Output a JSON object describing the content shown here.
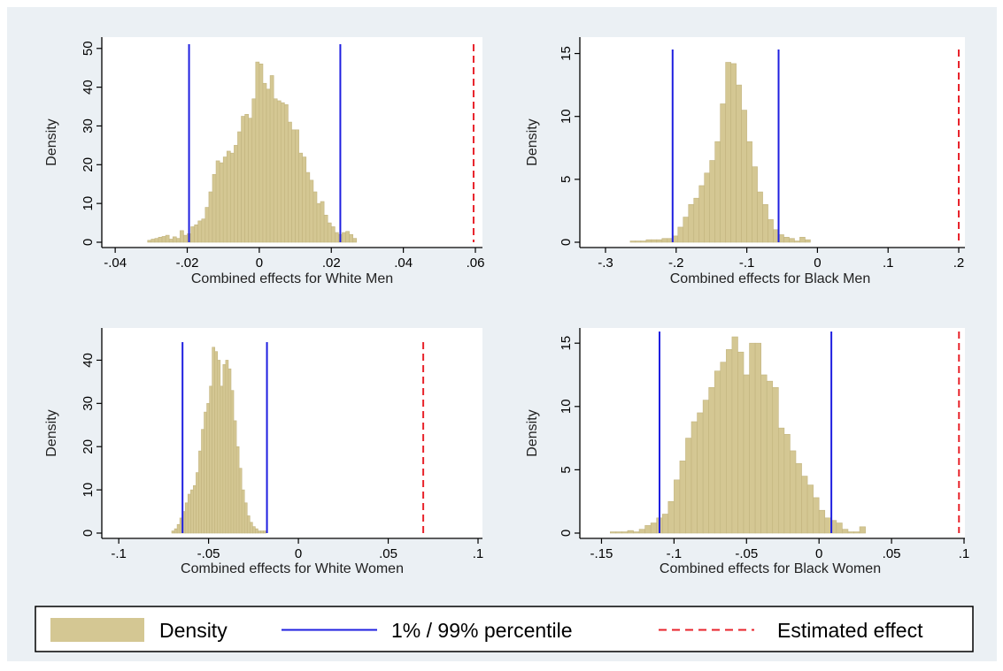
{
  "colors": {
    "background": "#ebf0f4",
    "plot": "#ffffff",
    "bar_fill": "#d4c793",
    "bar_edge": "#c2b47e",
    "percentile_line": "#1f1fe0",
    "estimate_line": "#e8232b"
  },
  "legend": {
    "density_label": "Density",
    "percentile_label": "1% / 99% percentile",
    "estimate_label": "Estimated effect"
  },
  "chart_data": [
    {
      "type": "bar",
      "id": "white-men",
      "xlabel": "Combined effects for White Men",
      "ylabel": "Density",
      "xlim": [
        -0.042,
        0.06
      ],
      "ylim": [
        0,
        52
      ],
      "xticks": [
        -0.04,
        -0.02,
        0,
        0.02,
        0.04,
        0.06
      ],
      "xtick_labels": [
        "-.04",
        "-.02",
        "0",
        ".02",
        ".04",
        ".06"
      ],
      "yticks": [
        0,
        10,
        20,
        30,
        40,
        50
      ],
      "bin_width": 0.001,
      "bins": [
        {
          "x": -0.031,
          "y": 0.5
        },
        {
          "x": -0.03,
          "y": 0.8
        },
        {
          "x": -0.029,
          "y": 1.0
        },
        {
          "x": -0.028,
          "y": 1.3
        },
        {
          "x": -0.027,
          "y": 1.5
        },
        {
          "x": -0.026,
          "y": 1.8
        },
        {
          "x": -0.025,
          "y": 0.8
        },
        {
          "x": -0.024,
          "y": 1.4
        },
        {
          "x": -0.023,
          "y": 1.0
        },
        {
          "x": -0.022,
          "y": 3.0
        },
        {
          "x": -0.021,
          "y": 1.8
        },
        {
          "x": -0.02,
          "y": 2.2
        },
        {
          "x": -0.019,
          "y": 4.0
        },
        {
          "x": -0.018,
          "y": 4.5
        },
        {
          "x": -0.017,
          "y": 5.5
        },
        {
          "x": -0.016,
          "y": 6.0
        },
        {
          "x": -0.015,
          "y": 9.0
        },
        {
          "x": -0.014,
          "y": 13.0
        },
        {
          "x": -0.013,
          "y": 17.5
        },
        {
          "x": -0.012,
          "y": 21.0
        },
        {
          "x": -0.011,
          "y": 20.5
        },
        {
          "x": -0.01,
          "y": 22.0
        },
        {
          "x": -0.009,
          "y": 23.5
        },
        {
          "x": -0.008,
          "y": 23.0
        },
        {
          "x": -0.007,
          "y": 25.0
        },
        {
          "x": -0.006,
          "y": 28.5
        },
        {
          "x": -0.005,
          "y": 32.5
        },
        {
          "x": -0.004,
          "y": 33.0
        },
        {
          "x": -0.003,
          "y": 32.0
        },
        {
          "x": -0.002,
          "y": 37.0
        },
        {
          "x": -0.001,
          "y": 46.5
        },
        {
          "x": 0.0,
          "y": 46.0
        },
        {
          "x": 0.001,
          "y": 41.0
        },
        {
          "x": 0.002,
          "y": 39.5
        },
        {
          "x": 0.003,
          "y": 43.0
        },
        {
          "x": 0.004,
          "y": 37.0
        },
        {
          "x": 0.005,
          "y": 36.5
        },
        {
          "x": 0.006,
          "y": 36.0
        },
        {
          "x": 0.007,
          "y": 35.5
        },
        {
          "x": 0.008,
          "y": 31.0
        },
        {
          "x": 0.009,
          "y": 29.0
        },
        {
          "x": 0.01,
          "y": 29.0
        },
        {
          "x": 0.011,
          "y": 23.0
        },
        {
          "x": 0.012,
          "y": 22.0
        },
        {
          "x": 0.013,
          "y": 18.0
        },
        {
          "x": 0.014,
          "y": 16.0
        },
        {
          "x": 0.015,
          "y": 13.0
        },
        {
          "x": 0.016,
          "y": 10.0
        },
        {
          "x": 0.017,
          "y": 10.5
        },
        {
          "x": 0.018,
          "y": 7.0
        },
        {
          "x": 0.019,
          "y": 5.0
        },
        {
          "x": 0.02,
          "y": 4.0
        },
        {
          "x": 0.021,
          "y": 2.5
        },
        {
          "x": 0.022,
          "y": 2.0
        },
        {
          "x": 0.023,
          "y": 2.5
        },
        {
          "x": 0.024,
          "y": 2.8
        },
        {
          "x": 0.025,
          "y": 2.0
        },
        {
          "x": 0.026,
          "y": 1.0
        }
      ],
      "percentile_lines": [
        -0.0195,
        0.0225
      ],
      "estimated_effect": 0.0595
    },
    {
      "type": "bar",
      "id": "black-men",
      "xlabel": "Combined effects for Black Men",
      "ylabel": "Density",
      "xlim": [
        -0.31,
        0.205
      ],
      "ylim": [
        0,
        15.6
      ],
      "xticks": [
        -0.3,
        -0.2,
        -0.1,
        0,
        0.1,
        0.2
      ],
      "xtick_labels": [
        "-.3",
        "-.2",
        "-.1",
        "0",
        ".1",
        ".2"
      ],
      "yticks": [
        0,
        5,
        10,
        15
      ],
      "bin_width": 0.0075,
      "bins": [
        {
          "x": -0.265,
          "y": 0.1
        },
        {
          "x": -0.2575,
          "y": 0.1
        },
        {
          "x": -0.25,
          "y": 0.1
        },
        {
          "x": -0.2425,
          "y": 0.2
        },
        {
          "x": -0.235,
          "y": 0.2
        },
        {
          "x": -0.2275,
          "y": 0.2
        },
        {
          "x": -0.22,
          "y": 0.3
        },
        {
          "x": -0.2125,
          "y": 0.3
        },
        {
          "x": -0.205,
          "y": 0.5
        },
        {
          "x": -0.1975,
          "y": 1.2
        },
        {
          "x": -0.19,
          "y": 2.0
        },
        {
          "x": -0.1825,
          "y": 3.0
        },
        {
          "x": -0.175,
          "y": 3.5
        },
        {
          "x": -0.1675,
          "y": 4.5
        },
        {
          "x": -0.16,
          "y": 5.5
        },
        {
          "x": -0.1525,
          "y": 6.5
        },
        {
          "x": -0.145,
          "y": 8.0
        },
        {
          "x": -0.1375,
          "y": 11.0
        },
        {
          "x": -0.13,
          "y": 14.3
        },
        {
          "x": -0.1225,
          "y": 14.2
        },
        {
          "x": -0.115,
          "y": 12.5
        },
        {
          "x": -0.1075,
          "y": 10.5
        },
        {
          "x": -0.1,
          "y": 8.0
        },
        {
          "x": -0.0925,
          "y": 6.0
        },
        {
          "x": -0.085,
          "y": 4.0
        },
        {
          "x": -0.0775,
          "y": 3.0
        },
        {
          "x": -0.07,
          "y": 1.8
        },
        {
          "x": -0.0625,
          "y": 1.0
        },
        {
          "x": -0.055,
          "y": 0.6
        },
        {
          "x": -0.0475,
          "y": 0.4
        },
        {
          "x": -0.04,
          "y": 0.3
        },
        {
          "x": -0.0325,
          "y": 0.1
        },
        {
          "x": -0.025,
          "y": 0.4
        },
        {
          "x": -0.0175,
          "y": 0.2
        }
      ],
      "percentile_lines": [
        -0.205,
        -0.055
      ],
      "estimated_effect": 0.2
    },
    {
      "type": "bar",
      "id": "white-women",
      "xlabel": "Combined effects for White Women",
      "ylabel": "Density",
      "xlim": [
        -0.105,
        0.1
      ],
      "ylim": [
        0,
        45
      ],
      "xticks": [
        -0.1,
        -0.05,
        0,
        0.05,
        0.1
      ],
      "xtick_labels": [
        "-.1",
        "-.05",
        "0",
        ".05",
        ".1"
      ],
      "yticks": [
        0,
        10,
        20,
        30,
        40
      ],
      "bin_width": 0.0015,
      "bins": [
        {
          "x": -0.0705,
          "y": 0.5
        },
        {
          "x": -0.069,
          "y": 1.0
        },
        {
          "x": -0.0675,
          "y": 2.0
        },
        {
          "x": -0.066,
          "y": 3.5
        },
        {
          "x": -0.0645,
          "y": 5.0
        },
        {
          "x": -0.063,
          "y": 7.0
        },
        {
          "x": -0.0615,
          "y": 9.0
        },
        {
          "x": -0.06,
          "y": 10.0
        },
        {
          "x": -0.0585,
          "y": 11.0
        },
        {
          "x": -0.057,
          "y": 14.0
        },
        {
          "x": -0.0555,
          "y": 19.0
        },
        {
          "x": -0.054,
          "y": 24.0
        },
        {
          "x": -0.0525,
          "y": 28.0
        },
        {
          "x": -0.051,
          "y": 30.0
        },
        {
          "x": -0.0495,
          "y": 34.0
        },
        {
          "x": -0.048,
          "y": 43.0
        },
        {
          "x": -0.0465,
          "y": 42.0
        },
        {
          "x": -0.045,
          "y": 40.0
        },
        {
          "x": -0.0435,
          "y": 34.0
        },
        {
          "x": -0.042,
          "y": 39.0
        },
        {
          "x": -0.0405,
          "y": 40.0
        },
        {
          "x": -0.039,
          "y": 38.0
        },
        {
          "x": -0.0375,
          "y": 33.0
        },
        {
          "x": -0.036,
          "y": 26.0
        },
        {
          "x": -0.0345,
          "y": 20.0
        },
        {
          "x": -0.033,
          "y": 15.0
        },
        {
          "x": -0.0315,
          "y": 10.0
        },
        {
          "x": -0.03,
          "y": 7.0
        },
        {
          "x": -0.0285,
          "y": 4.0
        },
        {
          "x": -0.027,
          "y": 2.5
        },
        {
          "x": -0.0255,
          "y": 1.5
        },
        {
          "x": -0.024,
          "y": 1.0
        },
        {
          "x": -0.0225,
          "y": 0.5
        },
        {
          "x": -0.021,
          "y": 0.5
        },
        {
          "x": -0.0195,
          "y": 0.5
        }
      ],
      "percentile_lines": [
        -0.0645,
        -0.0175
      ],
      "estimated_effect": 0.0695
    },
    {
      "type": "bar",
      "id": "black-women",
      "xlabel": "Combined effects for Black Women",
      "ylabel": "Density",
      "xlim": [
        -0.157,
        0.1
      ],
      "ylim": [
        0,
        16.2
      ],
      "xticks": [
        -0.15,
        -0.1,
        -0.05,
        0,
        0.05,
        0.1
      ],
      "xtick_labels": [
        "-.15",
        "-.1",
        "-.05",
        "0",
        ".05",
        ".1"
      ],
      "yticks": [
        0,
        5,
        10,
        15
      ],
      "bin_width": 0.004,
      "bins": [
        {
          "x": -0.144,
          "y": 0.1
        },
        {
          "x": -0.14,
          "y": 0.1
        },
        {
          "x": -0.136,
          "y": 0.1
        },
        {
          "x": -0.132,
          "y": 0.2
        },
        {
          "x": -0.128,
          "y": 0.1
        },
        {
          "x": -0.124,
          "y": 0.3
        },
        {
          "x": -0.12,
          "y": 0.6
        },
        {
          "x": -0.116,
          "y": 0.8
        },
        {
          "x": -0.112,
          "y": 1.2
        },
        {
          "x": -0.108,
          "y": 1.5
        },
        {
          "x": -0.104,
          "y": 2.5
        },
        {
          "x": -0.1,
          "y": 4.2
        },
        {
          "x": -0.096,
          "y": 5.7
        },
        {
          "x": -0.092,
          "y": 7.5
        },
        {
          "x": -0.088,
          "y": 8.8
        },
        {
          "x": -0.084,
          "y": 9.5
        },
        {
          "x": -0.08,
          "y": 10.5
        },
        {
          "x": -0.076,
          "y": 11.5
        },
        {
          "x": -0.072,
          "y": 12.8
        },
        {
          "x": -0.068,
          "y": 13.5
        },
        {
          "x": -0.064,
          "y": 14.5
        },
        {
          "x": -0.06,
          "y": 15.5
        },
        {
          "x": -0.056,
          "y": 14.3
        },
        {
          "x": -0.052,
          "y": 12.5
        },
        {
          "x": -0.048,
          "y": 15.0
        },
        {
          "x": -0.044,
          "y": 15.0
        },
        {
          "x": -0.04,
          "y": 12.5
        },
        {
          "x": -0.036,
          "y": 12.0
        },
        {
          "x": -0.032,
          "y": 11.5
        },
        {
          "x": -0.028,
          "y": 8.3
        },
        {
          "x": -0.024,
          "y": 7.8
        },
        {
          "x": -0.02,
          "y": 6.5
        },
        {
          "x": -0.016,
          "y": 5.5
        },
        {
          "x": -0.012,
          "y": 4.5
        },
        {
          "x": -0.008,
          "y": 3.8
        },
        {
          "x": -0.004,
          "y": 2.8
        },
        {
          "x": 0.0,
          "y": 1.8
        },
        {
          "x": 0.004,
          "y": 1.2
        },
        {
          "x": 0.008,
          "y": 1.0
        },
        {
          "x": 0.012,
          "y": 0.8
        },
        {
          "x": 0.016,
          "y": 0.3
        },
        {
          "x": 0.02,
          "y": 0.1
        },
        {
          "x": 0.024,
          "y": 0.1
        },
        {
          "x": 0.028,
          "y": 0.5
        }
      ],
      "percentile_lines": [
        -0.11,
        0.0085
      ],
      "estimated_effect": 0.0965
    }
  ]
}
